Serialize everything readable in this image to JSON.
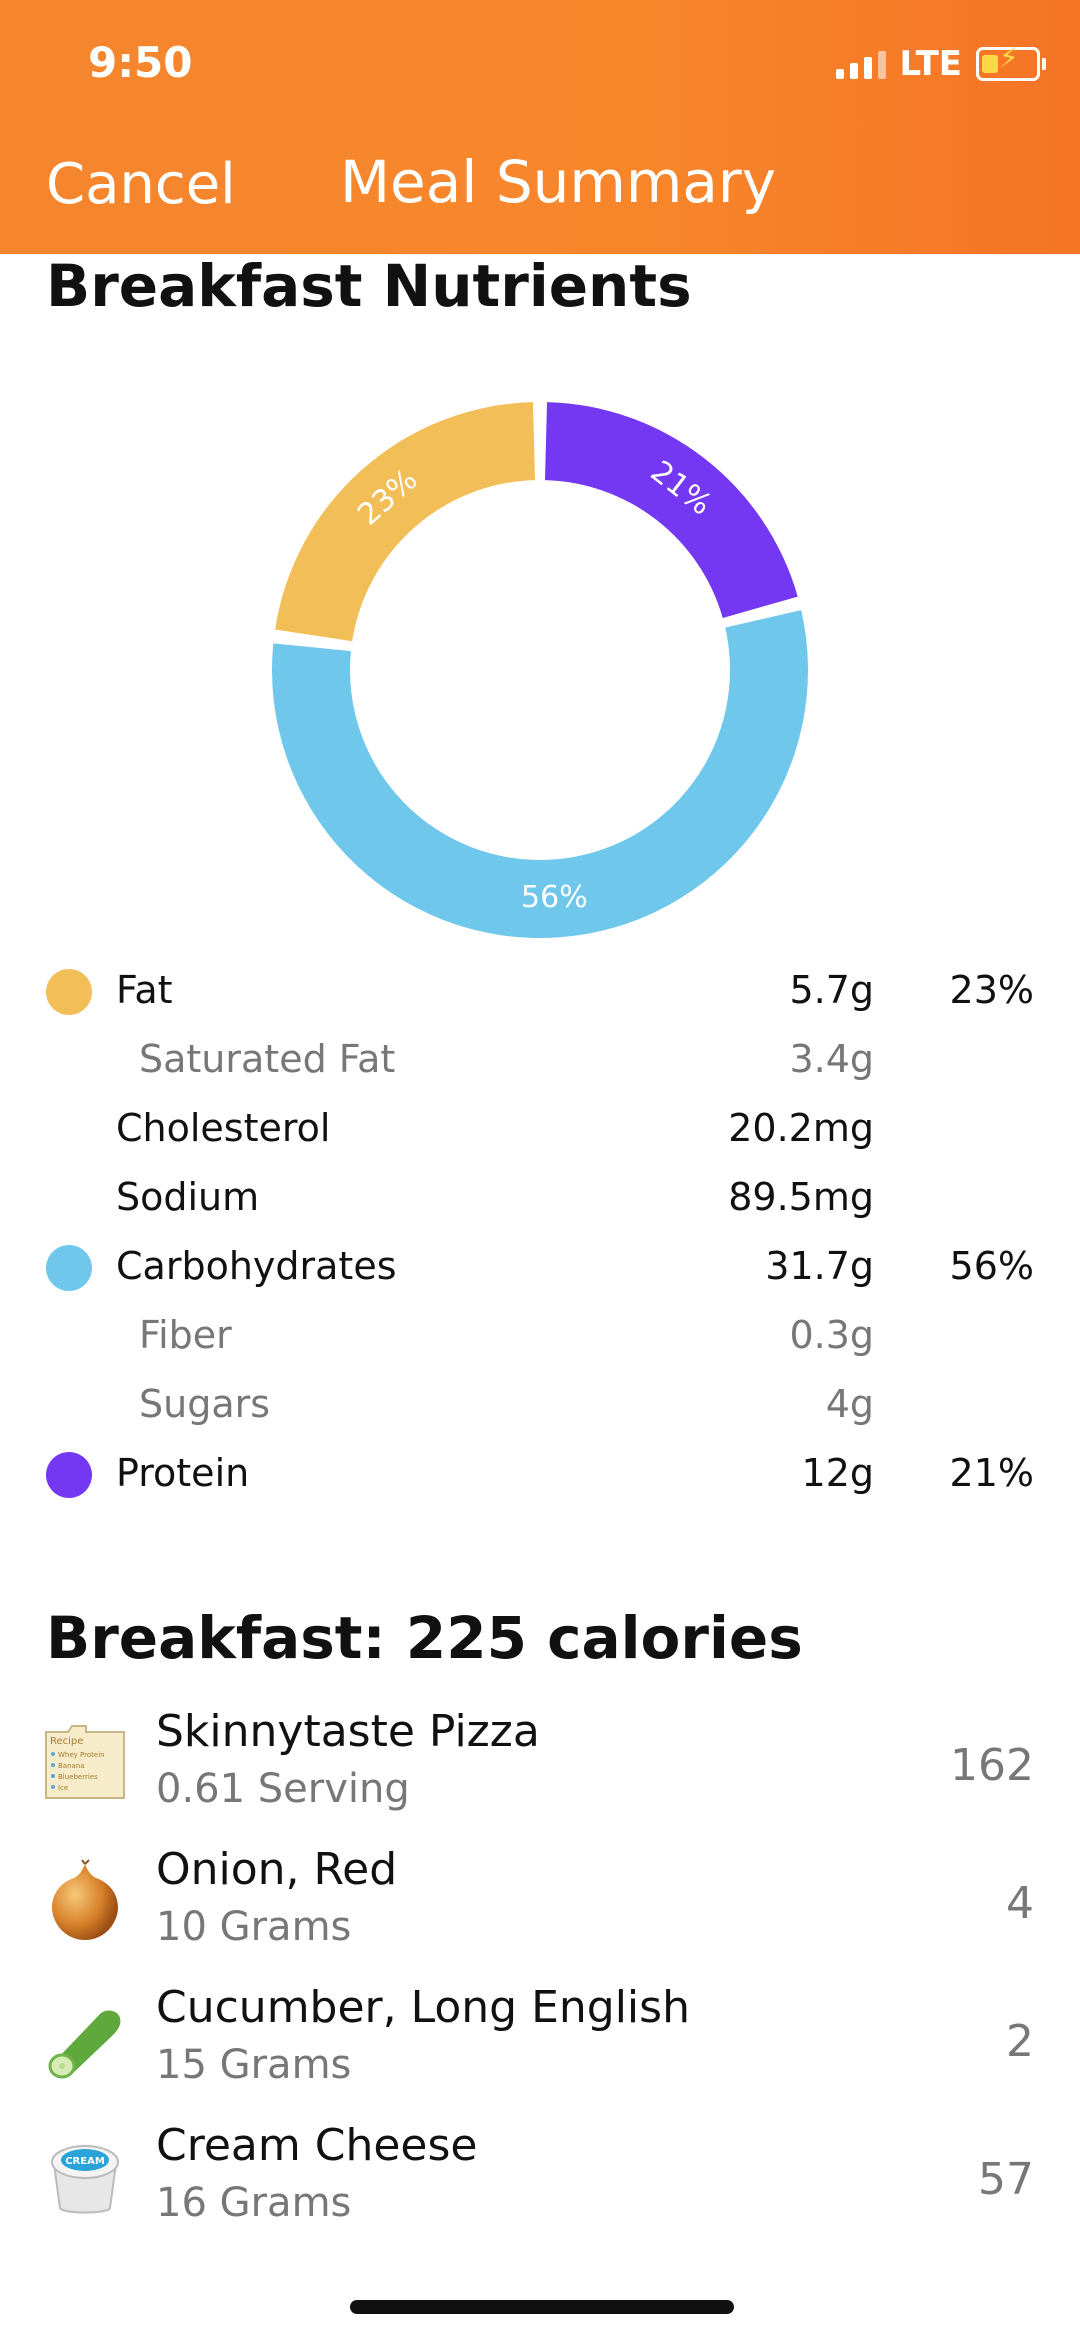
{
  "status": {
    "time": "9:50",
    "network": "LTE"
  },
  "nav": {
    "cancel_label": "Cancel",
    "title": "Meal Summary"
  },
  "nutrients": {
    "title": "Breakfast Nutrients",
    "chart_labels": {
      "fat": "23%",
      "protein": "21%",
      "carbs": "56%"
    },
    "rows": [
      {
        "label": "Fat",
        "value": "5.7g",
        "pct": "23%"
      },
      {
        "label": "Saturated Fat",
        "value": "3.4g",
        "pct": ""
      },
      {
        "label": "Cholesterol",
        "value": "20.2mg",
        "pct": ""
      },
      {
        "label": "Sodium",
        "value": "89.5mg",
        "pct": ""
      },
      {
        "label": "Carbohydrates",
        "value": "31.7g",
        "pct": "56%"
      },
      {
        "label": "Fiber",
        "value": "0.3g",
        "pct": ""
      },
      {
        "label": "Sugars",
        "value": "4g",
        "pct": ""
      },
      {
        "label": "Protein",
        "value": "12g",
        "pct": "21%"
      }
    ],
    "colors": {
      "fat": "#f2be57",
      "carbs": "#70c7ec",
      "protein": "#7437f2"
    }
  },
  "chart_data": {
    "type": "pie",
    "categories": [
      "Fat",
      "Protein",
      "Carbohydrates"
    ],
    "values": [
      23,
      21,
      56
    ]
  },
  "meal": {
    "title": "Breakfast: 225 calories",
    "items": [
      {
        "name": "Skinnytaste Pizza",
        "amount": "0.61 Serving",
        "calories": "162",
        "icon": "recipe-card-icon",
        "icon_text": [
          "Recipe",
          "Whey Protein",
          "Banana",
          "Blueberries",
          "Ice"
        ]
      },
      {
        "name": "Onion, Red",
        "amount": "10 Grams",
        "calories": "4",
        "icon": "onion-icon"
      },
      {
        "name": "Cucumber, Long English",
        "amount": "15 Grams",
        "calories": "2",
        "icon": "cucumber-icon"
      },
      {
        "name": "Cream Cheese",
        "amount": "16 Grams",
        "calories": "57",
        "icon": "cream-cheese-icon",
        "icon_text": [
          "CREAM"
        ]
      }
    ]
  }
}
